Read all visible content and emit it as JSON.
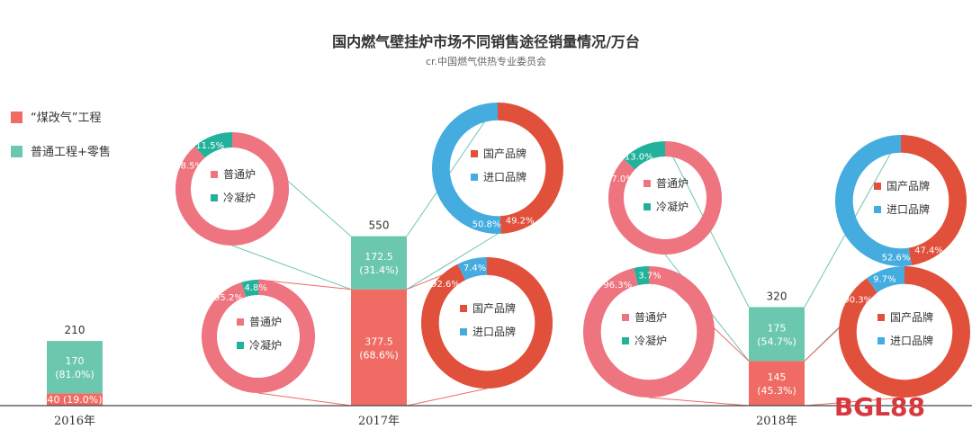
{
  "colors": {
    "coal": "#ef6b63",
    "normal": "#6cc7af",
    "pink": "#ee7480",
    "teal": "#22b29b",
    "red": "#e0503a",
    "blue": "#45ace0"
  },
  "chart_data": {
    "type": "bar",
    "title": "国内燃气壁挂炉市场不同销售途径销量情况/万台",
    "subtitle": "cr.中国燃气供热专业委员会",
    "legend": [
      {
        "label": "“煤改气”工程",
        "color": "coal"
      },
      {
        "label": "普通工程+零售",
        "color": "normal"
      }
    ],
    "categories": [
      "2016年",
      "2017年",
      "2018年"
    ],
    "totals": [
      "210",
      "550",
      "320"
    ],
    "series": [
      {
        "name": "“煤改气”工程",
        "values": [
          40,
          377.5,
          145
        ],
        "labels": [
          "40 (19.0%)",
          "377.5|(68.6%)",
          "145|(45.3%)"
        ]
      },
      {
        "name": "普通工程+零售",
        "values": [
          170,
          172.5,
          175
        ],
        "labels": [
          "170|(81.0%)",
          "172.5|(31.4%)",
          "175|(54.7%)"
        ]
      }
    ],
    "ylim": [
      0,
      600
    ],
    "donuts": [
      {
        "id": "2017-normal-type",
        "segments": [
          {
            "label": "普通炉",
            "value": 88.5,
            "text": "88.5%",
            "color": "pink"
          },
          {
            "label": "冷凝炉",
            "value": 11.5,
            "text": "11.5%",
            "color": "teal"
          }
        ]
      },
      {
        "id": "2017-normal-brand",
        "segments": [
          {
            "label": "国产品牌",
            "value": 49.2,
            "text": "49.2%",
            "color": "red"
          },
          {
            "label": "进口品牌",
            "value": 50.8,
            "text": "50.8%",
            "color": "blue"
          }
        ]
      },
      {
        "id": "2017-coal-type",
        "segments": [
          {
            "label": "普通炉",
            "value": 95.2,
            "text": "95.2%",
            "color": "pink"
          },
          {
            "label": "冷凝炉",
            "value": 4.8,
            "text": "4.8%",
            "color": "teal"
          }
        ]
      },
      {
        "id": "2017-coal-brand",
        "segments": [
          {
            "label": "国产品牌",
            "value": 92.6,
            "text": "92.6%",
            "color": "red"
          },
          {
            "label": "进口品牌",
            "value": 7.4,
            "text": "7.4%",
            "color": "blue"
          }
        ]
      },
      {
        "id": "2018-normal-type",
        "segments": [
          {
            "label": "普通炉",
            "value": 87.0,
            "text": "87.0%",
            "color": "pink"
          },
          {
            "label": "冷凝炉",
            "value": 13.0,
            "text": "13.0%",
            "color": "teal"
          }
        ]
      },
      {
        "id": "2018-normal-brand",
        "segments": [
          {
            "label": "国产品牌",
            "value": 47.4,
            "text": "47.4%",
            "color": "red"
          },
          {
            "label": "进口品牌",
            "value": 52.6,
            "text": "52.6%",
            "color": "blue"
          }
        ]
      },
      {
        "id": "2018-coal-type",
        "segments": [
          {
            "label": "普通炉",
            "value": 96.3,
            "text": "96.3%",
            "color": "pink"
          },
          {
            "label": "冷凝炉",
            "value": 3.7,
            "text": "3.7%",
            "color": "teal"
          }
        ]
      },
      {
        "id": "2018-coal-brand",
        "segments": [
          {
            "label": "国产品牌",
            "value": 90.3,
            "text": "90.3%",
            "color": "red"
          },
          {
            "label": "进口品牌",
            "value": 9.7,
            "text": "9.7%",
            "color": "blue"
          }
        ]
      }
    ]
  },
  "watermark": "BGL88"
}
